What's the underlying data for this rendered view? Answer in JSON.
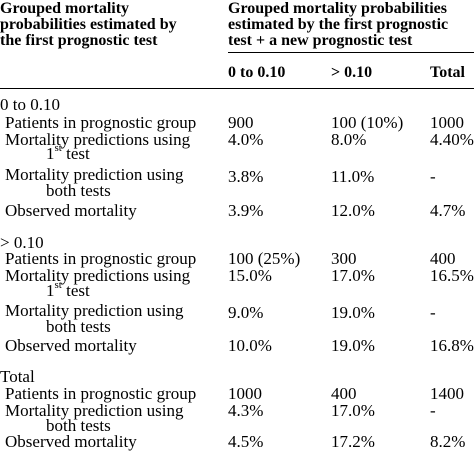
{
  "header": {
    "col1_line1": "Grouped mortality",
    "col1_line2": "probabilities estimated by",
    "col1_line3": "the first prognostic test",
    "col2_line1": "Grouped mortality probabilities",
    "col2_line2": "estimated by the first prognostic",
    "col2_line3": "test + a new prognostic test",
    "sub_a": "0 to 0.10",
    "sub_b": "> 0.10",
    "sub_total": "Total"
  },
  "sections": [
    {
      "title": "0 to 0.10",
      "rows": [
        {
          "l1": "Patients in prognostic group",
          "a": "900",
          "b": "100 (10%)",
          "t": "1000"
        },
        {
          "l1": "Mortality predictions using",
          "l2": "1",
          "sup": "st",
          "l2b": " test",
          "a": "4.0%",
          "b": "8.0%",
          "t": "4.40%"
        },
        {
          "l1": "Mortality prediction using",
          "l2": "both tests",
          "a": "3.8%",
          "b": "11.0%",
          "t": "-"
        },
        {
          "l1": "Observed mortality",
          "a": "3.9%",
          "b": "12.0%",
          "t": "4.7%"
        }
      ]
    },
    {
      "title": "> 0.10",
      "rows": [
        {
          "l1": "Patients in prognostic group",
          "a": "100 (25%)",
          "b": "300",
          "t": "400"
        },
        {
          "l1": "Mortality predictions using",
          "l2": "1",
          "sup": "st",
          "l2b": " test",
          "a": "15.0%",
          "b": "17.0%",
          "t": "16.5%"
        },
        {
          "l1": "Mortality prediction using",
          "l2": "both tests",
          "a": "9.0%",
          "b": "19.0%",
          "t": "-"
        },
        {
          "l1": "Observed mortality",
          "a": "10.0%",
          "b": "19.0%",
          "t": "16.8%"
        }
      ]
    },
    {
      "title": "Total",
      "rows": [
        {
          "l1": "Patients in prognostic group",
          "a": "1000",
          "b": "400",
          "t": "1400"
        },
        {
          "l1": "Mortality prediction using",
          "l2": "both tests",
          "a": "4.3%",
          "b": "17.0%",
          "t": "-"
        },
        {
          "l1": "Observed mortality",
          "a": "4.5%",
          "b": "17.2%",
          "t": "8.2%"
        }
      ]
    }
  ]
}
